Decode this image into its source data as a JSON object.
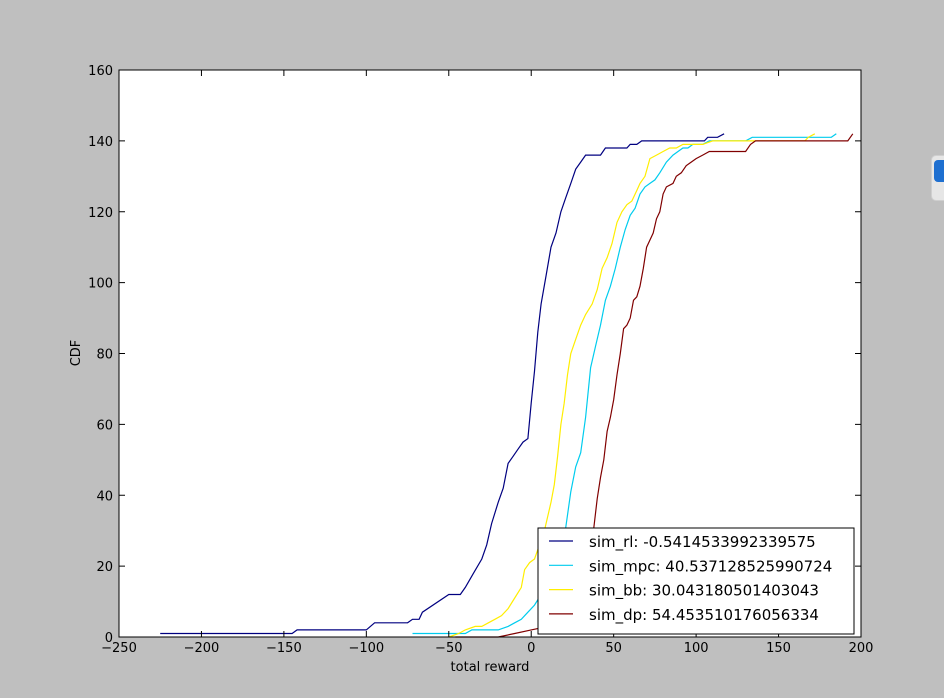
{
  "chart_data": {
    "type": "line",
    "xlabel": "total reward",
    "ylabel": "CDF",
    "xlim": [
      -250,
      200
    ],
    "ylim": [
      0,
      160
    ],
    "xticks": [
      -250,
      -200,
      -150,
      -100,
      -50,
      0,
      50,
      100,
      150,
      200
    ],
    "xtick_labels": [
      "−250",
      "−200",
      "−150",
      "−100",
      "−50",
      "0",
      "50",
      "100",
      "150",
      "200"
    ],
    "yticks": [
      0,
      20,
      40,
      60,
      80,
      100,
      120,
      140,
      160
    ],
    "ytick_labels": [
      "0",
      "20",
      "40",
      "60",
      "80",
      "100",
      "120",
      "140",
      "160"
    ],
    "grid": false,
    "legend_placement": "lower-right",
    "series": [
      {
        "name": "sim_rl: -0.5414533992339575",
        "color": "#000080",
        "points": [
          [
            -225,
            1
          ],
          [
            -145,
            1
          ],
          [
            -142,
            2
          ],
          [
            -100,
            2
          ],
          [
            -95,
            4
          ],
          [
            -75,
            4
          ],
          [
            -72,
            5
          ],
          [
            -68,
            5
          ],
          [
            -66,
            7
          ],
          [
            -50,
            12
          ],
          [
            -43,
            12
          ],
          [
            -40,
            14
          ],
          [
            -35,
            18
          ],
          [
            -30,
            22
          ],
          [
            -27,
            26
          ],
          [
            -24,
            32
          ],
          [
            -20,
            38
          ],
          [
            -17,
            42
          ],
          [
            -14,
            49
          ],
          [
            -11,
            51
          ],
          [
            -8,
            53
          ],
          [
            -5,
            55
          ],
          [
            -2,
            56
          ],
          [
            0,
            66
          ],
          [
            2,
            75
          ],
          [
            4,
            86
          ],
          [
            6,
            94
          ],
          [
            9,
            102
          ],
          [
            12,
            110
          ],
          [
            15,
            114
          ],
          [
            18,
            120
          ],
          [
            21,
            124
          ],
          [
            24,
            128
          ],
          [
            27,
            132
          ],
          [
            30,
            134
          ],
          [
            33,
            136
          ],
          [
            42,
            136
          ],
          [
            45,
            138
          ],
          [
            53,
            138
          ],
          [
            58,
            138
          ],
          [
            60,
            139
          ],
          [
            64,
            139
          ],
          [
            67,
            140
          ],
          [
            105,
            140
          ],
          [
            107,
            141
          ],
          [
            113,
            141
          ],
          [
            117,
            142
          ]
        ]
      },
      {
        "name": "sim_mpc: 40.537128525990724",
        "color": "#00ccee",
        "points": [
          [
            -72,
            1
          ],
          [
            -50,
            1
          ],
          [
            -40,
            1
          ],
          [
            -36,
            2
          ],
          [
            -20,
            2
          ],
          [
            -14,
            3
          ],
          [
            -10,
            4
          ],
          [
            -6,
            5
          ],
          [
            -2,
            7
          ],
          [
            2,
            9
          ],
          [
            6,
            12
          ],
          [
            10,
            14
          ],
          [
            14,
            19
          ],
          [
            17,
            24
          ],
          [
            21,
            31
          ],
          [
            24,
            41
          ],
          [
            27,
            48
          ],
          [
            30,
            52
          ],
          [
            33,
            62
          ],
          [
            36,
            76
          ],
          [
            39,
            82
          ],
          [
            42,
            88
          ],
          [
            45,
            95
          ],
          [
            48,
            99
          ],
          [
            51,
            104
          ],
          [
            54,
            110
          ],
          [
            57,
            115
          ],
          [
            60,
            119
          ],
          [
            63,
            121
          ],
          [
            66,
            125
          ],
          [
            69,
            127
          ],
          [
            72,
            128
          ],
          [
            75,
            129
          ],
          [
            78,
            131
          ],
          [
            82,
            134
          ],
          [
            86,
            136
          ],
          [
            89,
            137
          ],
          [
            92,
            138
          ],
          [
            95,
            138
          ],
          [
            98,
            139
          ],
          [
            104,
            139
          ],
          [
            108,
            140
          ],
          [
            130,
            140
          ],
          [
            134,
            141
          ],
          [
            182,
            141
          ],
          [
            185,
            142
          ]
        ]
      },
      {
        "name": "sim_bb: 30.043180501403043",
        "color": "#ffee00",
        "points": [
          [
            -50,
            0
          ],
          [
            -44,
            1
          ],
          [
            -40,
            2
          ],
          [
            -34,
            3
          ],
          [
            -30,
            3
          ],
          [
            -26,
            4
          ],
          [
            -22,
            5
          ],
          [
            -18,
            6
          ],
          [
            -14,
            8
          ],
          [
            -10,
            11
          ],
          [
            -6,
            14
          ],
          [
            -4,
            19
          ],
          [
            -1,
            21
          ],
          [
            2,
            22
          ],
          [
            5,
            26
          ],
          [
            8,
            30
          ],
          [
            12,
            38
          ],
          [
            14,
            43
          ],
          [
            16,
            51
          ],
          [
            18,
            60
          ],
          [
            20,
            66
          ],
          [
            22,
            74
          ],
          [
            24,
            80
          ],
          [
            27,
            84
          ],
          [
            30,
            88
          ],
          [
            33,
            91
          ],
          [
            37,
            94
          ],
          [
            40,
            98
          ],
          [
            43,
            104
          ],
          [
            46,
            107
          ],
          [
            49,
            111
          ],
          [
            52,
            117
          ],
          [
            55,
            120
          ],
          [
            58,
            122
          ],
          [
            61,
            123
          ],
          [
            64,
            126
          ],
          [
            66,
            128
          ],
          [
            69,
            130
          ],
          [
            72,
            135
          ],
          [
            76,
            136
          ],
          [
            80,
            137
          ],
          [
            84,
            138
          ],
          [
            88,
            138
          ],
          [
            92,
            139
          ],
          [
            96,
            139
          ],
          [
            100,
            139
          ],
          [
            104,
            139
          ],
          [
            110,
            140
          ],
          [
            118,
            140
          ],
          [
            166,
            140
          ],
          [
            168,
            141
          ],
          [
            172,
            142
          ]
        ]
      },
      {
        "name": "sim_dp: 54.453510176056334",
        "color": "#800000",
        "points": [
          [
            -46,
            0
          ],
          [
            -20,
            0
          ],
          [
            -10,
            1
          ],
          [
            0,
            2
          ],
          [
            10,
            3
          ],
          [
            20,
            5
          ],
          [
            26,
            8
          ],
          [
            30,
            12
          ],
          [
            33,
            18
          ],
          [
            36,
            24
          ],
          [
            38,
            31
          ],
          [
            40,
            39
          ],
          [
            42,
            45
          ],
          [
            44,
            50
          ],
          [
            46,
            58
          ],
          [
            48,
            62
          ],
          [
            50,
            67
          ],
          [
            52,
            74
          ],
          [
            54,
            80
          ],
          [
            56,
            87
          ],
          [
            58,
            88
          ],
          [
            60,
            90
          ],
          [
            62,
            95
          ],
          [
            64,
            96
          ],
          [
            66,
            99
          ],
          [
            68,
            104
          ],
          [
            70,
            110
          ],
          [
            72,
            112
          ],
          [
            74,
            114
          ],
          [
            76,
            118
          ],
          [
            78,
            120
          ],
          [
            80,
            125
          ],
          [
            82,
            127
          ],
          [
            86,
            128
          ],
          [
            88,
            130
          ],
          [
            91,
            131
          ],
          [
            94,
            133
          ],
          [
            97,
            134
          ],
          [
            100,
            135
          ],
          [
            104,
            136
          ],
          [
            108,
            137
          ],
          [
            130,
            137
          ],
          [
            133,
            139
          ],
          [
            136,
            140
          ],
          [
            192,
            140
          ],
          [
            195,
            142
          ]
        ]
      }
    ]
  }
}
